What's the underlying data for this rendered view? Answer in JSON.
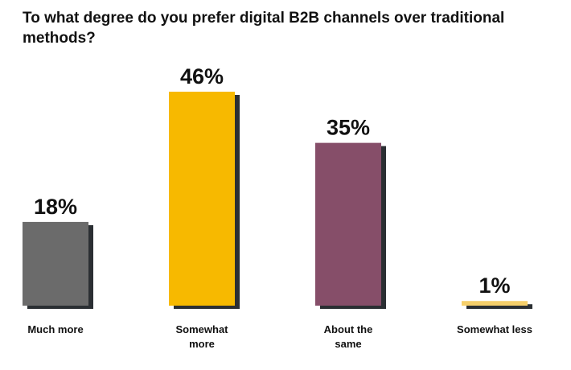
{
  "chart_data": {
    "type": "bar",
    "title": "To what degree do you prefer digital B2B channels over traditional methods?",
    "categories": [
      "Much more",
      "Somewhat more",
      "About the same",
      "Somewhat less"
    ],
    "category_lines": [
      [
        "Much more"
      ],
      [
        "Somewhat",
        "more"
      ],
      [
        "About the",
        "same"
      ],
      [
        "Somewhat less"
      ]
    ],
    "values": [
      18,
      46,
      35,
      1
    ],
    "value_labels": [
      "18%",
      "46%",
      "35%",
      "1%"
    ],
    "unit": "%",
    "colors": [
      "#6b6b6b",
      "#f7b900",
      "#864e69",
      "#f6d06b"
    ],
    "shadow_color": "#2b2f33",
    "ylim": [
      0,
      46
    ],
    "grid": false,
    "legend": "none"
  }
}
